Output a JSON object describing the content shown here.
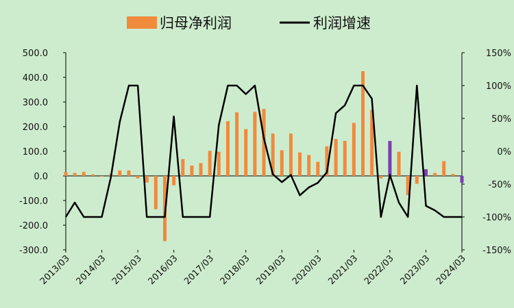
{
  "chart_data": {
    "type": "bar+line",
    "legend": {
      "placement": "top-center",
      "bar_label": "归母净利润",
      "line_label": "利润增速"
    },
    "x_tick_labels": [
      "2013/03",
      "2014/03",
      "2015/03",
      "2016/03",
      "2017/03",
      "2018/03",
      "2019/03",
      "2020/03",
      "2021/03",
      "2022/03",
      "2023/03",
      "2024/03"
    ],
    "left_axis": {
      "ylim": [
        -300,
        500
      ],
      "ticks": [
        -300,
        -200,
        -100,
        0,
        100,
        200,
        300,
        400,
        500
      ],
      "tick_labels": [
        "-300.0",
        "-200.0",
        "-100.0",
        "0.0",
        "100.0",
        "200.0",
        "300.0",
        "400.0",
        "500.0"
      ]
    },
    "right_axis": {
      "ylim": [
        -150,
        150
      ],
      "ticks": [
        -150,
        -100,
        -50,
        0,
        50,
        100,
        150
      ],
      "tick_labels": [
        "-150%",
        "-100%",
        "-50%",
        "0%",
        "50%",
        "100%",
        "150%"
      ]
    },
    "bar_color": "#f08a3c",
    "highlight_color": "#7a3fb0",
    "line_color": "#000000",
    "bars": [
      16,
      12,
      16,
      6,
      -3,
      8,
      22,
      22,
      -10,
      -27,
      -135,
      -265,
      -38,
      68,
      42,
      52,
      102,
      98,
      222,
      258,
      190,
      260,
      272,
      172,
      104,
      172,
      95,
      85,
      57,
      120,
      150,
      142,
      215,
      425,
      268,
      -10,
      142,
      98,
      -78,
      -32,
      27,
      12,
      60,
      8,
      -28
    ],
    "highlighted_bar_indices": [
      36,
      40,
      44
    ],
    "growth": [
      -100,
      -78,
      -100,
      -100,
      -100,
      -40,
      45,
      100,
      100,
      -100,
      -100,
      -100,
      53,
      -100,
      -100,
      -100,
      -100,
      40,
      100,
      100,
      87,
      100,
      20,
      -35,
      -47,
      -36,
      -67,
      -55,
      -48,
      -32,
      58,
      70,
      100,
      100,
      80,
      -100,
      -36,
      -78,
      -100,
      100,
      -83,
      -90,
      -100,
      -100,
      -100
    ]
  }
}
